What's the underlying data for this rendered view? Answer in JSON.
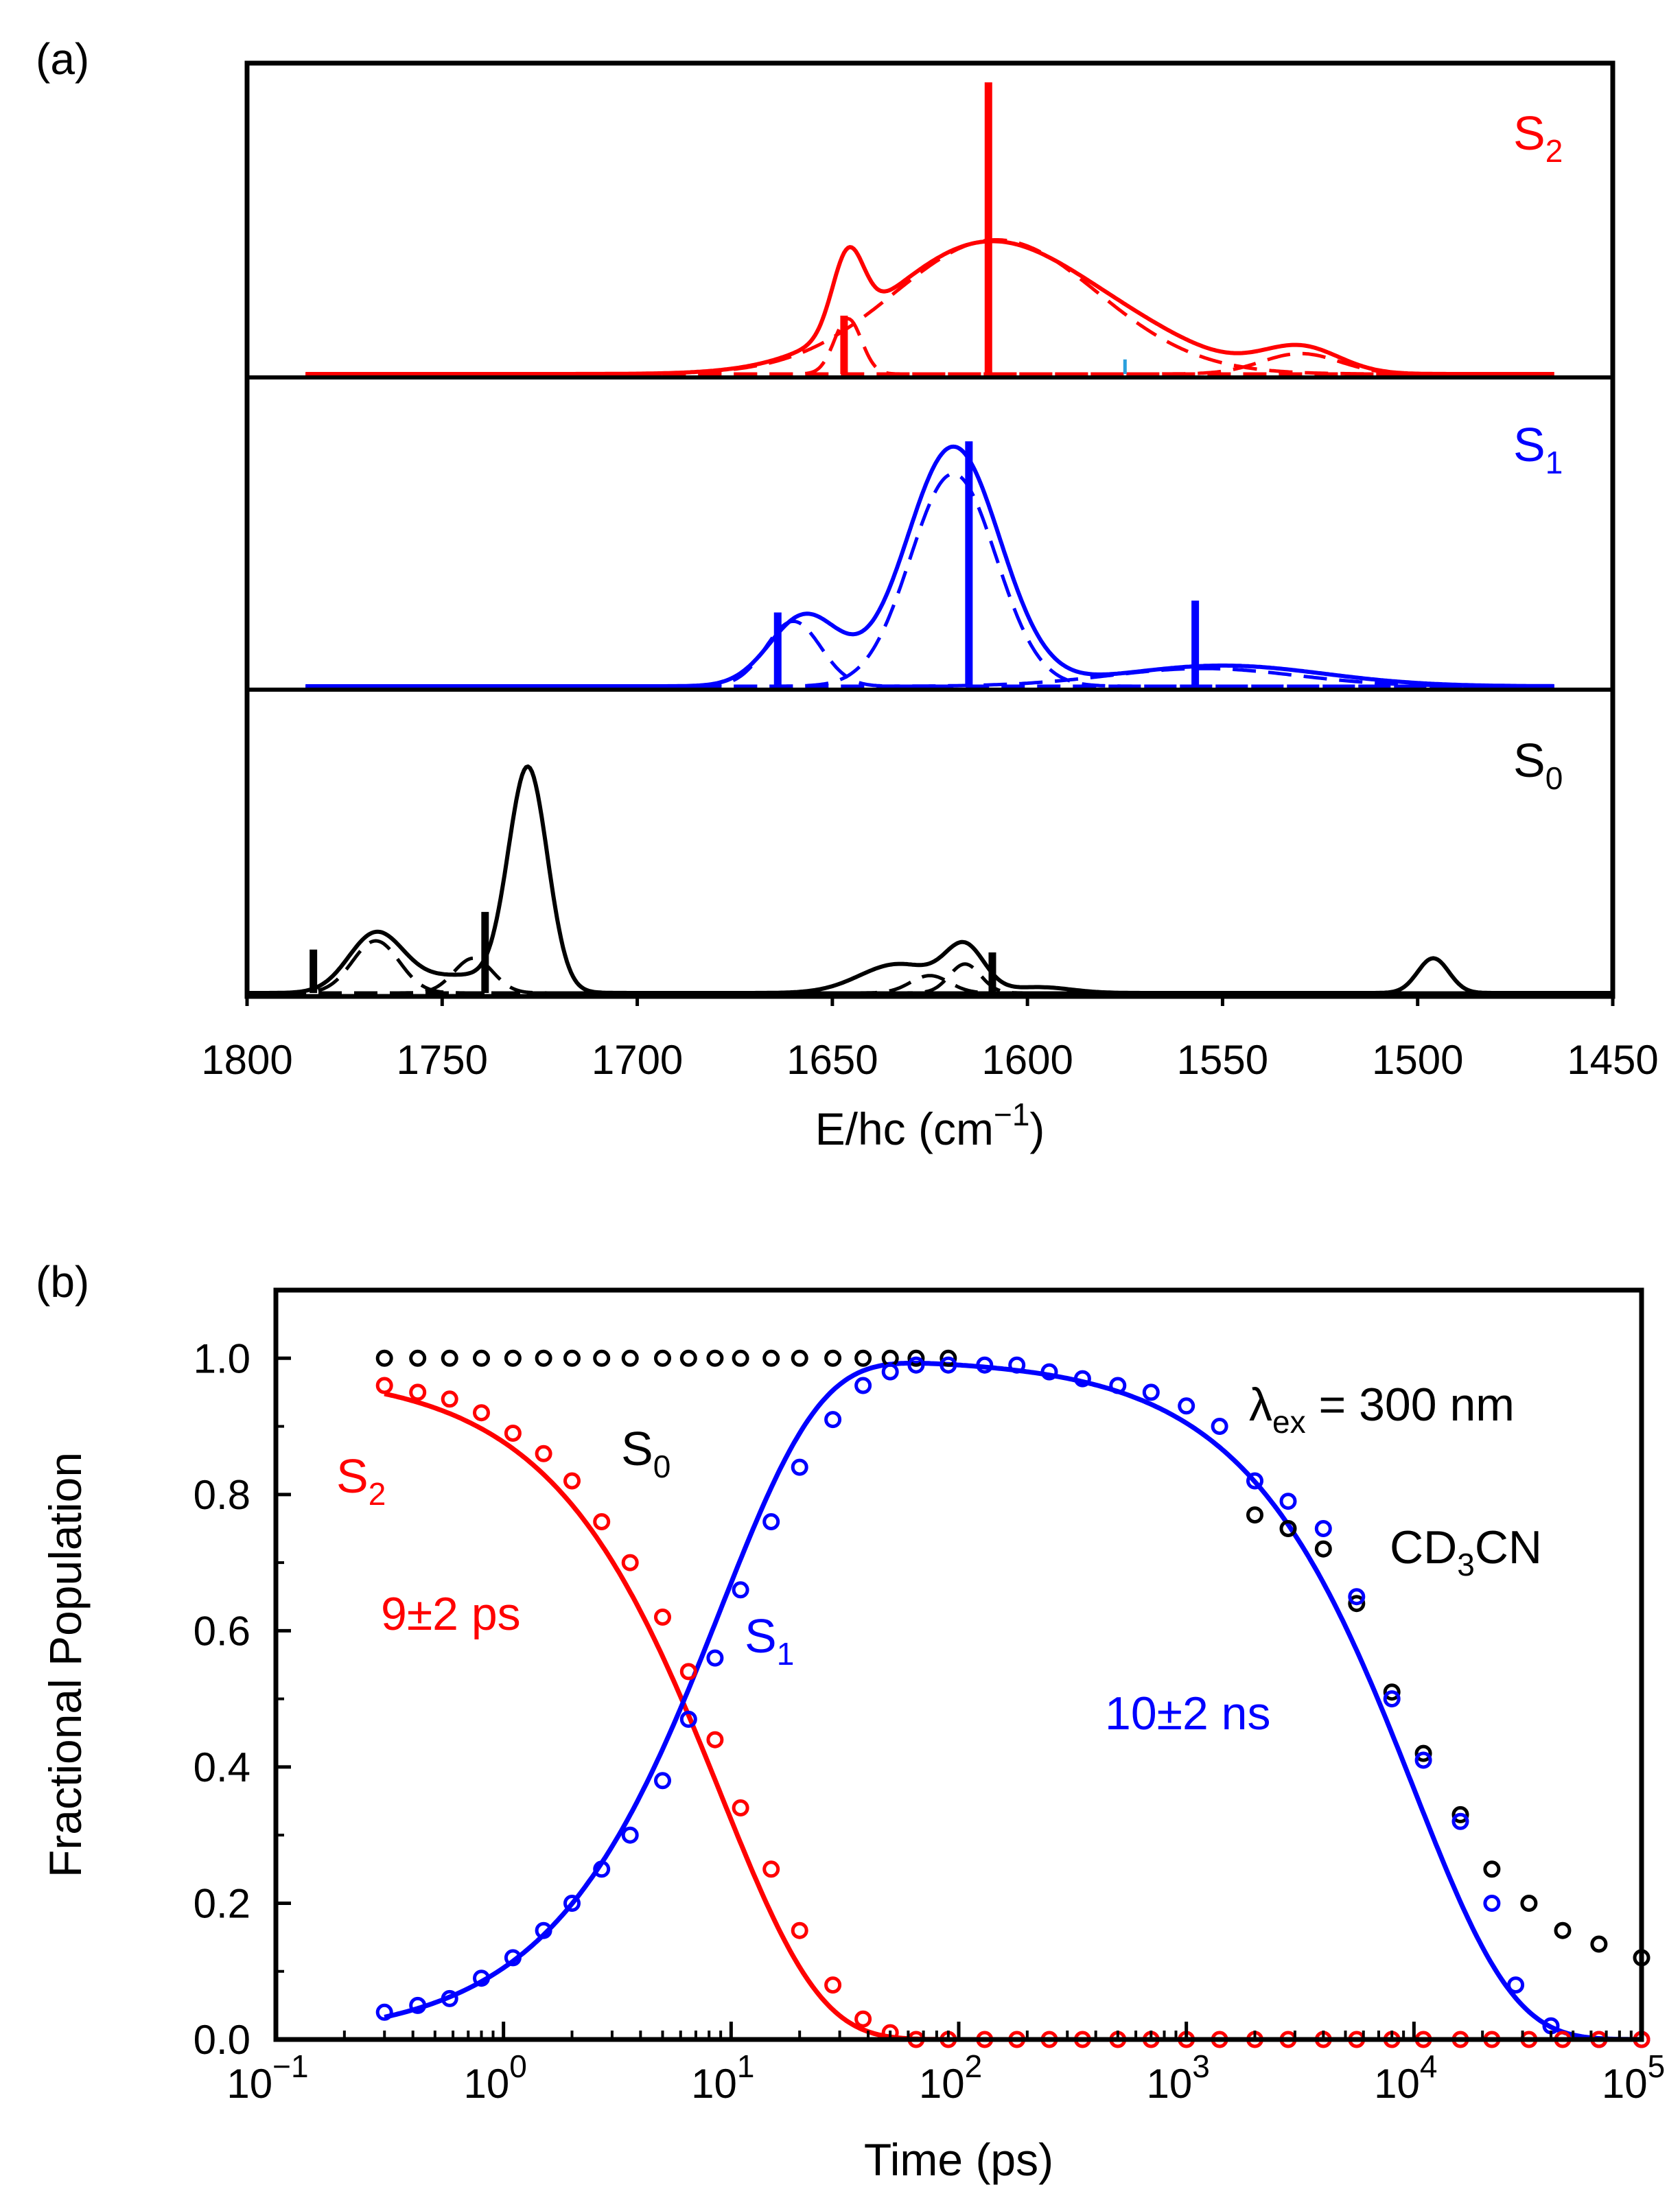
{
  "panel_a_label": "(a)",
  "panel_b_label": "(b)",
  "colors": {
    "S2": "#ff0000",
    "S1": "#0000ff",
    "S0": "#000000",
    "axis": "#000000",
    "cyan_mark": "#2aa0dd"
  },
  "chart_data": [
    {
      "id": "a",
      "type": "line",
      "title": "",
      "xlabel_main": "E/hc (cm",
      "xlabel_sup": "−1",
      "xlabel_close": ")",
      "x_range": [
        1800,
        1450
      ],
      "x_ticks": [
        1800,
        1750,
        1700,
        1650,
        1600,
        1550,
        1500,
        1450
      ],
      "yticks": "none",
      "subpanels": [
        {
          "state": "S2",
          "label_main": "S",
          "label_sub": "2",
          "color": "#ff0000",
          "y_max": 1.0,
          "sticks": [
            {
              "x": 1647,
              "h": 0.2
            },
            {
              "x": 1610,
              "h": 1.0
            },
            {
              "x": 1575,
              "h": 0.05,
              "color": "#2aa0dd"
            }
          ],
          "peaks": [
            {
              "x": 1646,
              "a": 0.26,
              "w": 4
            },
            {
              "x": 1610,
              "a": 0.45,
              "w": 26
            },
            {
              "x": 1570,
              "a": 0.06,
              "w": 18
            },
            {
              "x": 1530,
              "a": 0.09,
              "w": 10
            }
          ],
          "dashed": [
            {
              "x": 1646,
              "a": 0.19,
              "w": 3.5
            },
            {
              "x": 1608,
              "a": 0.46,
              "w": 26
            },
            {
              "x": 1530,
              "a": 0.07,
              "w": 10
            }
          ]
        },
        {
          "state": "S1",
          "label_main": "S",
          "label_sub": "1",
          "color": "#0000ff",
          "y_max": 1.0,
          "sticks": [
            {
              "x": 1664,
              "h": 0.25
            },
            {
              "x": 1615,
              "h": 0.83
            },
            {
              "x": 1557,
              "h": 0.29
            }
          ],
          "peaks": [
            {
              "x": 1657,
              "a": 0.24,
              "w": 9
            },
            {
              "x": 1619,
              "a": 0.81,
              "w": 12
            },
            {
              "x": 1550,
              "a": 0.07,
              "w": 26
            }
          ],
          "dashed": [
            {
              "x": 1660,
              "a": 0.22,
              "w": 7
            },
            {
              "x": 1619,
              "a": 0.72,
              "w": 11
            },
            {
              "x": 1555,
              "a": 0.06,
              "w": 24
            }
          ]
        },
        {
          "state": "S0",
          "label_main": "S",
          "label_sub": "0",
          "color": "#000000",
          "y_max": 1.0,
          "sticks": [
            {
              "x": 1783,
              "h": 0.15
            },
            {
              "x": 1739,
              "h": 0.28
            },
            {
              "x": 1609,
              "h": 0.14
            }
          ],
          "peaks": [
            {
              "x": 1767,
              "a": 0.2,
              "w": 7
            },
            {
              "x": 1745,
              "a": 0.06,
              "w": 12
            },
            {
              "x": 1728,
              "a": 0.76,
              "w": 5
            },
            {
              "x": 1633,
              "a": 0.1,
              "w": 10
            },
            {
              "x": 1616,
              "a": 0.15,
              "w": 5
            },
            {
              "x": 1597,
              "a": 0.02,
              "w": 8
            },
            {
              "x": 1496,
              "a": 0.12,
              "w": 4
            }
          ],
          "dashed": [
            {
              "x": 1767,
              "a": 0.18,
              "w": 6
            },
            {
              "x": 1742,
              "a": 0.12,
              "w": 5
            },
            {
              "x": 1625,
              "a": 0.06,
              "w": 5
            },
            {
              "x": 1616,
              "a": 0.1,
              "w": 4
            }
          ]
        }
      ]
    },
    {
      "id": "b",
      "type": "line",
      "title": "",
      "xlabel": "Time (ps)",
      "ylabel": "Fractional Population",
      "xscale": "log",
      "xlim_log10": [
        -1,
        5
      ],
      "ylim": [
        0,
        1.1
      ],
      "x_ticks_log10": [
        -1,
        0,
        1,
        2,
        3,
        4,
        5
      ],
      "x_tick_base": "10",
      "x_tick_exps": [
        "−1",
        "0",
        "1",
        "2",
        "3",
        "4",
        "5"
      ],
      "y_ticks": [
        0.0,
        0.2,
        0.4,
        0.6,
        0.8,
        1.0
      ],
      "y_tick_labels": [
        "0.0",
        "0.2",
        "0.4",
        "0.6",
        "0.8",
        "1.0"
      ],
      "series": [
        {
          "name": "S2",
          "color": "#ff0000",
          "tau_ps": 9,
          "a0": 0.98
        },
        {
          "name": "S1",
          "color": "#0000ff",
          "tau_rise_ps": 9,
          "tau_decay_ps": 10000
        },
        {
          "name": "S0",
          "color": "#000000",
          "value": 1.0
        }
      ],
      "points": {
        "S2": [
          [
            0.3,
            0.96
          ],
          [
            0.42,
            0.95
          ],
          [
            0.58,
            0.94
          ],
          [
            0.8,
            0.92
          ],
          [
            1.1,
            0.89
          ],
          [
            1.5,
            0.86
          ],
          [
            2.0,
            0.82
          ],
          [
            2.7,
            0.76
          ],
          [
            3.6,
            0.7
          ],
          [
            5.0,
            0.62
          ],
          [
            6.5,
            0.54
          ],
          [
            8.5,
            0.44
          ],
          [
            11,
            0.34
          ],
          [
            15,
            0.25
          ],
          [
            20,
            0.16
          ],
          [
            28,
            0.08
          ],
          [
            38,
            0.03
          ],
          [
            50,
            0.01
          ],
          [
            65,
            0.0
          ],
          [
            90,
            0.0
          ],
          [
            130,
            0.0
          ],
          [
            180,
            0.0
          ],
          [
            250,
            0.0
          ],
          [
            350,
            0.0
          ],
          [
            500,
            0.0
          ],
          [
            700,
            0.0
          ],
          [
            1000,
            0.0
          ],
          [
            1400,
            0.0
          ],
          [
            2000,
            0.0
          ],
          [
            2800,
            0.0
          ],
          [
            4000,
            0.0
          ],
          [
            5600,
            0.0
          ],
          [
            8000,
            0.0
          ],
          [
            11000,
            0.0
          ],
          [
            16000,
            0.0
          ],
          [
            22000,
            0.0
          ],
          [
            32000,
            0.0
          ],
          [
            45000,
            0.0
          ],
          [
            65000,
            0.0
          ],
          [
            100000,
            0.0
          ]
        ],
        "S1": [
          [
            0.3,
            0.04
          ],
          [
            0.42,
            0.05
          ],
          [
            0.58,
            0.06
          ],
          [
            0.8,
            0.09
          ],
          [
            1.1,
            0.12
          ],
          [
            1.5,
            0.16
          ],
          [
            2.0,
            0.2
          ],
          [
            2.7,
            0.25
          ],
          [
            3.6,
            0.3
          ],
          [
            5.0,
            0.38
          ],
          [
            6.5,
            0.47
          ],
          [
            8.5,
            0.56
          ],
          [
            11,
            0.66
          ],
          [
            15,
            0.76
          ],
          [
            20,
            0.84
          ],
          [
            28,
            0.91
          ],
          [
            38,
            0.96
          ],
          [
            50,
            0.98
          ],
          [
            65,
            0.99
          ],
          [
            90,
            0.99
          ],
          [
            130,
            0.99
          ],
          [
            180,
            0.99
          ],
          [
            250,
            0.98
          ],
          [
            350,
            0.97
          ],
          [
            500,
            0.96
          ],
          [
            700,
            0.95
          ],
          [
            1000,
            0.93
          ],
          [
            1400,
            0.9
          ],
          [
            2000,
            0.82
          ],
          [
            2800,
            0.79
          ],
          [
            4000,
            0.75
          ],
          [
            5600,
            0.65
          ],
          [
            8000,
            0.5
          ],
          [
            11000,
            0.41
          ],
          [
            16000,
            0.32
          ],
          [
            22000,
            0.2
          ],
          [
            28000,
            0.08
          ],
          [
            40000,
            0.02
          ],
          [
            65000,
            0.0
          ],
          [
            100000,
            0.0
          ]
        ],
        "S0": [
          [
            0.3,
            1.0
          ],
          [
            0.42,
            1.0
          ],
          [
            0.58,
            1.0
          ],
          [
            0.8,
            1.0
          ],
          [
            1.1,
            1.0
          ],
          [
            1.5,
            1.0
          ],
          [
            2.0,
            1.0
          ],
          [
            2.7,
            1.0
          ],
          [
            3.6,
            1.0
          ],
          [
            5.0,
            1.0
          ],
          [
            6.5,
            1.0
          ],
          [
            8.5,
            1.0
          ],
          [
            11,
            1.0
          ],
          [
            15,
            1.0
          ],
          [
            20,
            1.0
          ],
          [
            28,
            1.0
          ],
          [
            38,
            1.0
          ],
          [
            50,
            1.0
          ],
          [
            65,
            1.0
          ],
          [
            90,
            1.0
          ],
          [
            2000,
            0.77
          ],
          [
            2800,
            0.75
          ],
          [
            4000,
            0.72
          ],
          [
            5600,
            0.64
          ],
          [
            8000,
            0.51
          ],
          [
            11000,
            0.42
          ],
          [
            16000,
            0.33
          ],
          [
            22000,
            0.25
          ],
          [
            32000,
            0.2
          ],
          [
            45000,
            0.16
          ],
          [
            65000,
            0.14
          ],
          [
            100000,
            0.12
          ]
        ]
      },
      "annotations": {
        "S2_label_main": "S",
        "S2_label_sub": "2",
        "S0_label_main": "S",
        "S0_label_sub": "0",
        "S1_label_main": "S",
        "S1_label_sub": "1",
        "tau_S2": "9±2 ps",
        "tau_S1": "10±2 ns",
        "lambda_main": "λ",
        "lambda_sub": "ex",
        "lambda_rest": " = 300 nm",
        "solvent_main": "CD",
        "solvent_sub": "3",
        "solvent_rest": "CN"
      }
    }
  ]
}
